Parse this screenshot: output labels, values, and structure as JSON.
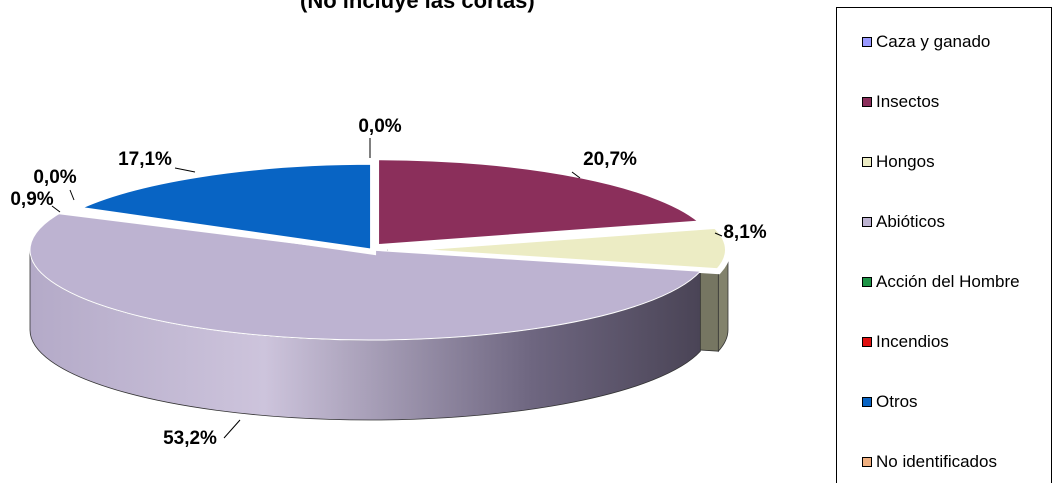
{
  "chart_data": {
    "type": "pie",
    "title": "(No incluye las cortas)",
    "categories": [
      "Caza y ganado",
      "Insectos",
      "Hongos",
      "Abióticos",
      "Acción del Hombre",
      "Incendios",
      "Otros",
      "No identificados"
    ],
    "values": [
      0.0,
      20.7,
      8.1,
      53.2,
      0.9,
      0.0,
      17.1,
      0.0
    ],
    "data_labels": [
      "0,0%",
      "20,7%",
      "8,1%",
      "53,2%",
      "0,9%",
      "0,0%",
      "17,1%",
      ""
    ],
    "colors": [
      "#9999ff",
      "#8b2f5b",
      "#ececc4",
      "#bdb3d1",
      "#1e9446",
      "#e01010",
      "#0864c4",
      "#f0b080"
    ],
    "legend_position": "right",
    "three_d": true
  }
}
